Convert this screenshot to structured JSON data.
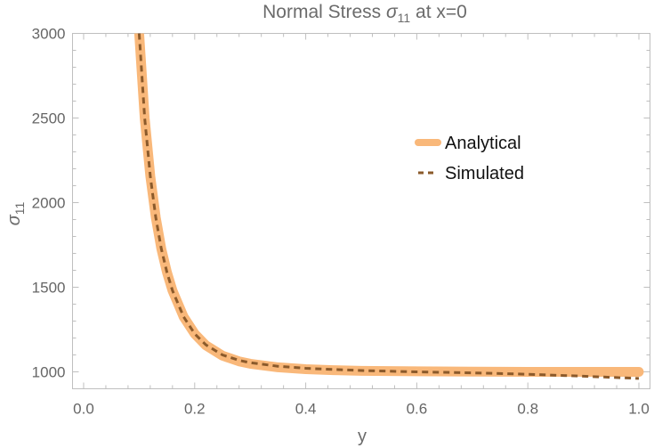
{
  "chart_data": {
    "type": "line",
    "title_main": "Normal Stress ",
    "title_symbol": "σ",
    "title_sub": "11",
    "title_tail": " at x=0",
    "xlabel": "y",
    "ylabel_symbol": "σ",
    "ylabel_sub": "11",
    "xlim": [
      -0.02,
      1.02
    ],
    "ylim": [
      900,
      3000
    ],
    "xticks": [
      0.0,
      0.2,
      0.4,
      0.6,
      0.8,
      1.0
    ],
    "xtick_labels": [
      "0.0",
      "0.2",
      "0.4",
      "0.6",
      "0.8",
      "1.0"
    ],
    "yticks": [
      1000,
      1500,
      2000,
      2500,
      3000
    ],
    "ytick_labels": [
      "1000",
      "1500",
      "2000",
      "2500",
      "3000"
    ],
    "grid": false,
    "legend_position": "right",
    "series": [
      {
        "name": "Analytical",
        "color": "#f9b87a",
        "style": "solid-thick",
        "x": [
          0.1,
          0.11,
          0.12,
          0.13,
          0.14,
          0.15,
          0.16,
          0.18,
          0.2,
          0.22,
          0.25,
          0.28,
          0.3,
          0.35,
          0.4,
          0.45,
          0.5,
          0.6,
          0.7,
          0.8,
          0.9,
          1.0
        ],
        "y": [
          3000,
          2500,
          2157,
          1911,
          1727,
          1589,
          1481,
          1326,
          1225,
          1157,
          1096,
          1062,
          1048,
          1027,
          1016,
          1010,
          1006,
          1003,
          1001,
          1000,
          1000,
          1000
        ]
      },
      {
        "name": "Simulated",
        "color": "#8b5a2b",
        "style": "dashed",
        "x": [
          0.1,
          0.11,
          0.12,
          0.13,
          0.14,
          0.15,
          0.16,
          0.18,
          0.2,
          0.22,
          0.25,
          0.28,
          0.3,
          0.35,
          0.4,
          0.45,
          0.5,
          0.6,
          0.7,
          0.8,
          0.9,
          1.0
        ],
        "y": [
          3000,
          2500,
          2157,
          1911,
          1727,
          1589,
          1481,
          1326,
          1225,
          1160,
          1100,
          1068,
          1054,
          1033,
          1021,
          1014,
          1008,
          1000,
          994,
          986,
          974,
          961
        ]
      }
    ]
  }
}
